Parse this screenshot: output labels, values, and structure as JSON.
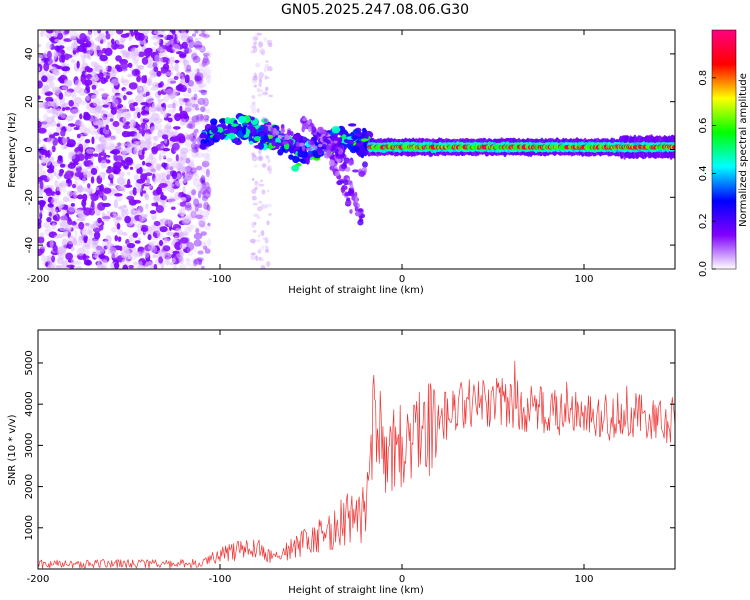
{
  "title": "GN05.2025.247.08.06.G30",
  "chart_data": [
    {
      "type": "heatmap",
      "title": "GN05.2025.247.08.06.G30",
      "xlabel": "Height of straight line (km)",
      "ylabel": "Frequency (Hz)",
      "xlim": [
        -200,
        150
      ],
      "ylim": [
        -50,
        50
      ],
      "xticks": [
        -200,
        -100,
        0,
        100
      ],
      "yticks": [
        -40,
        -20,
        0,
        20,
        40
      ],
      "colorbar": {
        "label": "Normalized spectral amplitude",
        "range": [
          0,
          1
        ],
        "ticks": [
          "0.0",
          "0.2",
          "0.4",
          "0.6",
          "0.8"
        ],
        "colors": [
          "#ffffff",
          "#8000ff",
          "#0000ff",
          "#00ffff",
          "#00ff00",
          "#ffff00",
          "#ff0000",
          "#ff0080"
        ]
      },
      "features": [
        {
          "name": "scattered noise",
          "x_range": [
            -200,
            -110
          ],
          "y_range": [
            -50,
            50
          ],
          "amplitude": 0.1
        },
        {
          "name": "noise column",
          "x_range": [
            -82,
            -72
          ],
          "y_range": [
            -50,
            50
          ],
          "amplitude": 0.05
        },
        {
          "name": "signal onset",
          "x_range": [
            -110,
            -18
          ],
          "freq_start_hz": 8,
          "freq_end_hz": 0,
          "amplitude": 0.3
        },
        {
          "name": "aliased branches",
          "x_range": [
            -75,
            -25
          ],
          "freq_start_hz": 10,
          "freq_end_hz": -30,
          "amplitude": 0.15
        },
        {
          "name": "carrier line",
          "x_range": [
            -18,
            150
          ],
          "freq_hz": 1,
          "amplitude": 0.95
        }
      ]
    },
    {
      "type": "line",
      "xlabel": "Height of straight line (km)",
      "ylabel": "SNR (10 * v/v)",
      "xlim": [
        -200,
        150
      ],
      "ylim": [
        0,
        5800
      ],
      "xticks": [
        -200,
        -100,
        0,
        100
      ],
      "yticks": [
        1000,
        2000,
        3000,
        4000,
        5000
      ],
      "color": "#ef3333",
      "series": [
        {
          "name": "SNR envelope",
          "x": [
            -200,
            -120,
            -110,
            -100,
            -90,
            -80,
            -70,
            -60,
            -50,
            -40,
            -30,
            -20,
            -15,
            -10,
            -5,
            0,
            10,
            20,
            30,
            40,
            50,
            60,
            70,
            80,
            90,
            100,
            110,
            120,
            130,
            140,
            150
          ],
          "y": [
            120,
            120,
            150,
            350,
            450,
            500,
            250,
            500,
            700,
            900,
            1200,
            1300,
            4000,
            2800,
            2900,
            3000,
            3300,
            3600,
            3900,
            4000,
            4000,
            4000,
            3900,
            3800,
            3800,
            3800,
            3700,
            3700,
            3700,
            3600,
            3600
          ]
        }
      ]
    }
  ]
}
